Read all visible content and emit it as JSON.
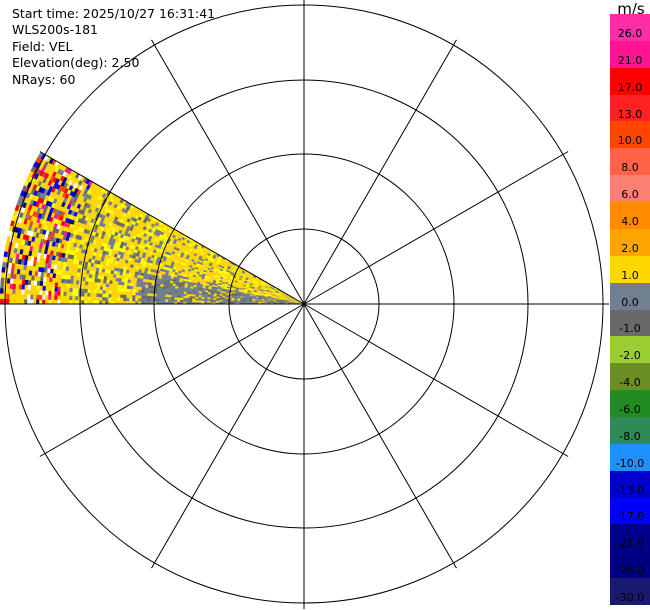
{
  "info": {
    "start_time": "Start time: 2025/10/27 16:31:41",
    "instrument": "WLS200s-181",
    "field": "Field: VEL",
    "elevation": "Elevation(deg): 2.50",
    "nrays": "NRays: 60"
  },
  "colorbar": {
    "unit": "m/s",
    "labels": [
      "26.0",
      "21.0",
      "17.0",
      "13.0",
      "10.0",
      "8.0",
      "6.0",
      "4.0",
      "2.0",
      "1.0",
      "0.0",
      "-1.0",
      "-2.0",
      "-4.0",
      "-6.0",
      "-8.0",
      "-10.0",
      "-13.0",
      "-17.0",
      "-21.0",
      "-26.0",
      "-30.0"
    ],
    "colors": [
      "#ff2da8",
      "#ff1493",
      "#ff0000",
      "#ff2020",
      "#ff4500",
      "#ff6347",
      "#fa8072",
      "#ff8c00",
      "#ffa500",
      "#ffd700",
      "#708090",
      "#696969",
      "#9acd32",
      "#6b8e23",
      "#228b22",
      "#2e8b57",
      "#1e90ff",
      "#0000cd",
      "#0000ff",
      "#00008b",
      "#000080",
      "#191970"
    ]
  },
  "scan": {
    "sector_start_deg": 180,
    "sector_end_deg": 210,
    "palette_speckle": [
      "#ffd700",
      "#ffff00",
      "#ff0000",
      "#0000ff",
      "#ff1493",
      "#00008b",
      "#708090",
      "#696969",
      "#ffffff",
      "#ff4500"
    ],
    "palette_near": [
      "#708090",
      "#696969",
      "#ffd700",
      "#ffff00"
    ]
  }
}
